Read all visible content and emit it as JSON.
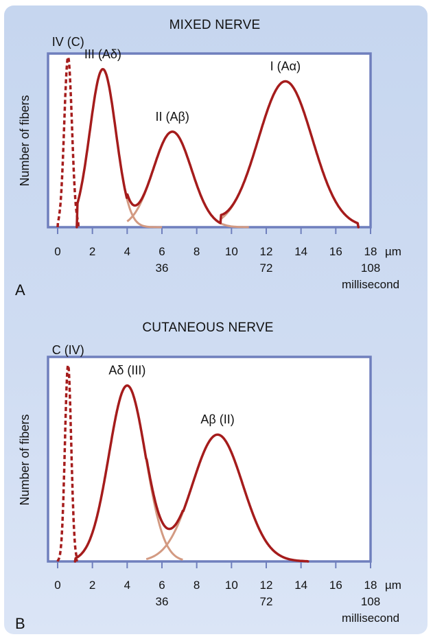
{
  "panels": [
    {
      "letter": "A",
      "title": "MIXED NERVE",
      "ylabel": "Number of fibers",
      "x_unit": "µm",
      "time_unit": "millisecond",
      "x_ticks": [
        "0",
        "2",
        "4",
        "6",
        "8",
        "10",
        "12",
        "14",
        "16",
        "18"
      ],
      "time_ticks": [
        {
          "at": 6,
          "label": "36"
        },
        {
          "at": 12,
          "label": "72"
        },
        {
          "at": 18,
          "label": "108"
        }
      ],
      "peak_labels": [
        {
          "text": "IV (C)",
          "x": 0.6
        },
        {
          "text": "III (Aδ)",
          "x": 2.6
        },
        {
          "text": "II (Aβ)",
          "x": 6.6
        },
        {
          "text": "I (Aα)",
          "x": 13.1
        }
      ]
    },
    {
      "letter": "B",
      "title": "CUTANEOUS NERVE",
      "ylabel": "Number of fibers",
      "x_unit": "µm",
      "time_unit": "millisecond",
      "x_ticks": [
        "0",
        "2",
        "4",
        "6",
        "8",
        "10",
        "12",
        "14",
        "16",
        "18"
      ],
      "time_ticks": [
        {
          "at": 6,
          "label": "36"
        },
        {
          "at": 12,
          "label": "72"
        },
        {
          "at": 18,
          "label": "108"
        }
      ],
      "peak_labels": [
        {
          "text": "C (IV)",
          "x": 0.6
        },
        {
          "text": "Aδ (III)",
          "x": 4.0
        },
        {
          "text": "Aβ (II)",
          "x": 9.2
        }
      ]
    }
  ],
  "chart_data": [
    {
      "type": "line",
      "title": "MIXED NERVE",
      "xlabel": "µm",
      "ylabel": "Number of fibers",
      "xlim": [
        0,
        18
      ],
      "ylim": [
        0,
        1
      ],
      "x_ticks": [
        0,
        2,
        4,
        6,
        8,
        10,
        12,
        14,
        16,
        18
      ],
      "secondary_x": {
        "label": "millisecond",
        "ticks": {
          "6": 36,
          "12": 72,
          "18": 108
        }
      },
      "series": [
        {
          "name": "IV (C)",
          "style": "dashed",
          "peak_x": 0.6,
          "peak_y": 0.98,
          "sd": 0.22,
          "range": [
            0,
            1.2
          ]
        },
        {
          "name": "III (Aδ)",
          "style": "component",
          "peak_x": 2.6,
          "peak_y": 0.91,
          "sd": 0.75,
          "range": [
            1.1,
            6.0
          ]
        },
        {
          "name": "II (Aβ)",
          "style": "component",
          "peak_x": 6.6,
          "peak_y": 0.55,
          "sd": 1.1,
          "range": [
            4.0,
            11.0
          ]
        },
        {
          "name": "I (Aα)",
          "style": "component",
          "peak_x": 13.1,
          "peak_y": 0.84,
          "sd": 1.55,
          "range": [
            9.4,
            17.3
          ]
        }
      ]
    },
    {
      "type": "line",
      "title": "CUTANEOUS NERVE",
      "xlabel": "µm",
      "ylabel": "Number of fibers",
      "xlim": [
        0,
        18
      ],
      "ylim": [
        0,
        1
      ],
      "x_ticks": [
        0,
        2,
        4,
        6,
        8,
        10,
        12,
        14,
        16,
        18
      ],
      "secondary_x": {
        "label": "millisecond",
        "ticks": {
          "6": 36,
          "12": 72,
          "18": 108
        }
      },
      "series": [
        {
          "name": "C (IV)",
          "style": "dashed",
          "peak_x": 0.6,
          "peak_y": 0.96,
          "sd": 0.18,
          "range": [
            0,
            1.1
          ]
        },
        {
          "name": "Aδ (III)",
          "style": "component",
          "peak_x": 4.0,
          "peak_y": 0.86,
          "sd": 1.05,
          "range": [
            1.0,
            7.2
          ]
        },
        {
          "name": "Aβ (II)",
          "style": "component",
          "peak_x": 9.2,
          "peak_y": 0.62,
          "sd": 1.45,
          "range": [
            5.1,
            14.4
          ]
        }
      ]
    }
  ],
  "colors": {
    "curve": "#a51c1c",
    "component": "#d39a82",
    "frame": "#6f7fbd",
    "background": "#cad8f0"
  }
}
